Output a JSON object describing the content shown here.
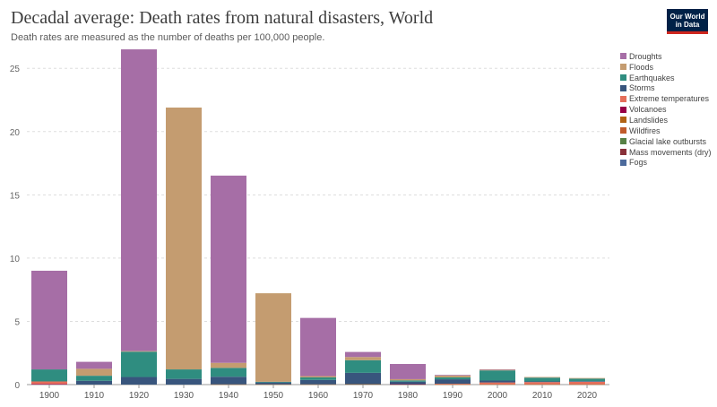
{
  "header": {
    "title": "Decadal average: Death rates from natural disasters, World",
    "subtitle": "Death rates are measured as the number of deaths per 100,000 people.",
    "logo_line1": "Our World",
    "logo_line2": "in Data"
  },
  "chart_data": {
    "type": "bar",
    "stacked": true,
    "categories": [
      "1900",
      "1910",
      "1920",
      "1930",
      "1940",
      "1950",
      "1960",
      "1970",
      "1980",
      "1990",
      "2000",
      "2010",
      "2020"
    ],
    "ylim": [
      0,
      27
    ],
    "yticks": [
      0,
      5,
      10,
      15,
      20,
      25
    ],
    "grid": true,
    "legend_position": "right",
    "series": [
      {
        "name": "Fogs",
        "color": "#4c6a9c",
        "values": [
          0,
          0,
          0,
          0,
          0,
          0,
          0,
          0,
          0,
          0,
          0,
          0,
          0
        ]
      },
      {
        "name": "Mass movements (dry)",
        "color": "#883039",
        "values": [
          0,
          0,
          0,
          0,
          0,
          0,
          0,
          0,
          0,
          0,
          0,
          0,
          0
        ]
      },
      {
        "name": "Glacial lake outbursts",
        "color": "#578145",
        "values": [
          0,
          0,
          0,
          0,
          0,
          0,
          0,
          0,
          0,
          0,
          0,
          0,
          0
        ]
      },
      {
        "name": "Wildfires",
        "color": "#c15b2b",
        "values": [
          0,
          0,
          0,
          0,
          0,
          0,
          0,
          0,
          0,
          0,
          0,
          0,
          0
        ]
      },
      {
        "name": "Landslides",
        "color": "#b16214",
        "values": [
          0,
          0,
          0,
          0,
          0.02,
          0.02,
          0.02,
          0.03,
          0.02,
          0.02,
          0.02,
          0.02,
          0.02
        ]
      },
      {
        "name": "Volcanoes",
        "color": "#970046",
        "values": [
          0.05,
          0,
          0,
          0,
          0,
          0,
          0,
          0,
          0.01,
          0,
          0,
          0,
          0
        ]
      },
      {
        "name": "Extreme temperatures",
        "color": "#e56e5a",
        "values": [
          0.2,
          0,
          0,
          0,
          0,
          0,
          0,
          0,
          0,
          0.05,
          0.15,
          0.18,
          0.2
        ]
      },
      {
        "name": "Storms",
        "color": "#38557d",
        "values": [
          0,
          0.3,
          0.6,
          0.45,
          0.6,
          0.15,
          0.35,
          0.9,
          0.2,
          0.35,
          0.15,
          0.05,
          0.05
        ]
      },
      {
        "name": "Earthquakes",
        "color": "#2f8d80",
        "values": [
          0.95,
          0.4,
          2.0,
          0.75,
          0.7,
          0.05,
          0.2,
          1.0,
          0.1,
          0.15,
          0.8,
          0.3,
          0.2
        ]
      },
      {
        "name": "Floods",
        "color": "#c49c70",
        "values": [
          0,
          0.55,
          0.05,
          20.7,
          0.4,
          7.0,
          0.1,
          0.25,
          0.1,
          0.15,
          0.07,
          0.05,
          0.05
        ]
      },
      {
        "name": "Droughts",
        "color": "#a66ea6",
        "values": [
          7.8,
          0.55,
          23.85,
          0,
          14.8,
          0,
          4.6,
          0.4,
          1.2,
          0.05,
          0.01,
          0,
          0
        ]
      }
    ],
    "legend_order": [
      "Droughts",
      "Floods",
      "Earthquakes",
      "Storms",
      "Extreme temperatures",
      "Volcanoes",
      "Landslides",
      "Wildfires",
      "Glacial lake outbursts",
      "Mass movements (dry)",
      "Fogs"
    ]
  }
}
